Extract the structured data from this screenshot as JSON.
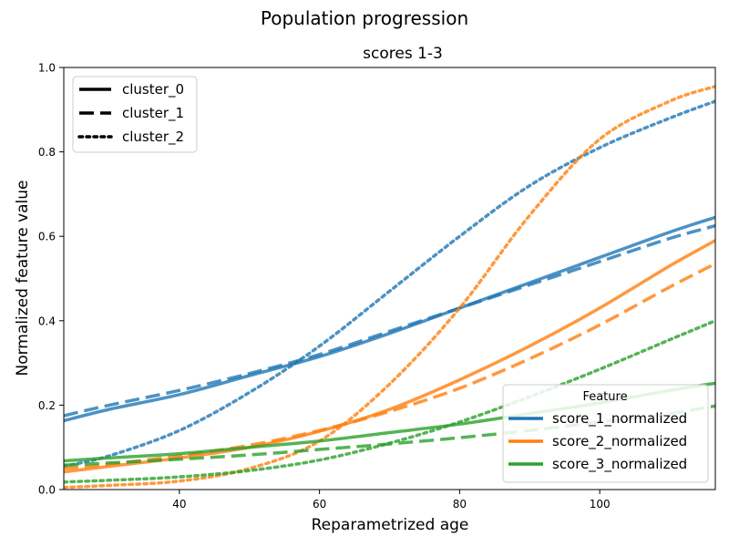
{
  "chart_data": {
    "type": "line",
    "suptitle": "Population progression",
    "title": "scores 1-3",
    "xlabel": "Reparametrized age",
    "ylabel": "Normalized feature value",
    "xlim": [
      23.5,
      116.5
    ],
    "ylim": [
      0,
      1
    ],
    "xticks": [
      40,
      60,
      80,
      100
    ],
    "yticks": [
      0.0,
      0.2,
      0.4,
      0.6,
      0.8,
      1.0
    ],
    "grid": false,
    "style_legend": {
      "placement": "top-left",
      "entries": [
        {
          "label": "cluster_0",
          "dash": "solid"
        },
        {
          "label": "cluster_1",
          "dash": "dashed"
        },
        {
          "label": "cluster_2",
          "dash": "dotted"
        }
      ]
    },
    "feature_legend": {
      "placement": "bottom-right",
      "title": "Feature",
      "entries": [
        {
          "label": "score_1_normalized",
          "color": "#1f77b4"
        },
        {
          "label": "score_2_normalized",
          "color": "#ff7f0e"
        },
        {
          "label": "score_3_normalized",
          "color": "#2ca02c"
        }
      ]
    },
    "x": [
      23.5,
      30,
      40,
      50,
      60,
      70,
      80,
      90,
      100,
      110,
      116.5
    ],
    "series": [
      {
        "feature": "score_1_normalized",
        "cluster": "cluster_0",
        "color": "#1f77b4",
        "dash": "solid",
        "values": [
          0.163,
          0.19,
          0.225,
          0.27,
          0.315,
          0.37,
          0.43,
          0.49,
          0.55,
          0.61,
          0.645
        ]
      },
      {
        "feature": "score_1_normalized",
        "cluster": "cluster_1",
        "color": "#1f77b4",
        "dash": "dashed",
        "values": [
          0.175,
          0.2,
          0.235,
          0.275,
          0.32,
          0.375,
          0.43,
          0.485,
          0.54,
          0.595,
          0.625
        ]
      },
      {
        "feature": "score_1_normalized",
        "cluster": "cluster_2",
        "color": "#1f77b4",
        "dash": "dotted",
        "values": [
          0.055,
          0.08,
          0.14,
          0.23,
          0.34,
          0.47,
          0.6,
          0.72,
          0.81,
          0.88,
          0.92
        ]
      },
      {
        "feature": "score_2_normalized",
        "cluster": "cluster_0",
        "color": "#ff7f0e",
        "dash": "solid",
        "values": [
          0.042,
          0.055,
          0.075,
          0.1,
          0.138,
          0.19,
          0.26,
          0.34,
          0.43,
          0.53,
          0.59
        ]
      },
      {
        "feature": "score_2_normalized",
        "cluster": "cluster_1",
        "color": "#ff7f0e",
        "dash": "dashed",
        "values": [
          0.05,
          0.06,
          0.08,
          0.105,
          0.14,
          0.185,
          0.24,
          0.31,
          0.39,
          0.48,
          0.535
        ]
      },
      {
        "feature": "score_2_normalized",
        "cluster": "cluster_2",
        "color": "#ff7f0e",
        "dash": "dotted",
        "values": [
          0.005,
          0.01,
          0.02,
          0.05,
          0.115,
          0.25,
          0.43,
          0.65,
          0.83,
          0.92,
          0.955
        ]
      },
      {
        "feature": "score_3_normalized",
        "cluster": "cluster_0",
        "color": "#2ca02c",
        "dash": "solid",
        "values": [
          0.068,
          0.075,
          0.085,
          0.1,
          0.115,
          0.135,
          0.155,
          0.18,
          0.205,
          0.235,
          0.252
        ]
      },
      {
        "feature": "score_3_normalized",
        "cluster": "cluster_1",
        "color": "#2ca02c",
        "dash": "dashed",
        "values": [
          0.058,
          0.063,
          0.072,
          0.082,
          0.095,
          0.108,
          0.123,
          0.14,
          0.16,
          0.18,
          0.198
        ]
      },
      {
        "feature": "score_3_normalized",
        "cluster": "cluster_2",
        "color": "#2ca02c",
        "dash": "dotted",
        "values": [
          0.018,
          0.022,
          0.03,
          0.045,
          0.07,
          0.11,
          0.16,
          0.22,
          0.285,
          0.355,
          0.4
        ]
      }
    ]
  }
}
